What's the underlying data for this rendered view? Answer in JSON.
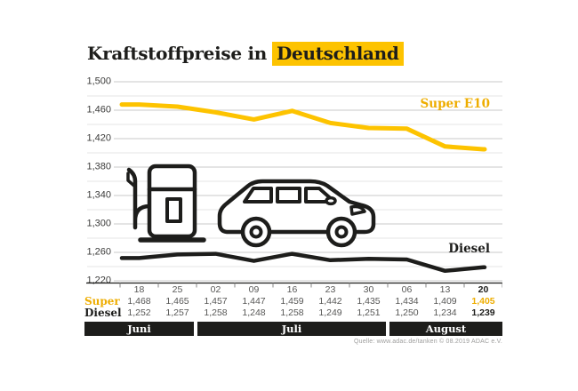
{
  "title": {
    "prefix": "Kraftstoffpreise in",
    "highlight": "Deutschland"
  },
  "source": "Quelle: www.adac.de/tanken    © 08.2019    ADAC e.V.",
  "colors": {
    "accent_yellow": "#fdc300",
    "yellow_text": "#eead00",
    "ink_black": "#1d1d1b",
    "value_gray": "#575756",
    "grid_major": "#c9c9c9",
    "grid_minor": "#e5e5e5",
    "tick_gray": "#878787",
    "source_gray": "#9d9d9c"
  },
  "icons": [
    "fuel-pump-icon",
    "car-icon"
  ],
  "chart_data": {
    "type": "line",
    "title": "Kraftstoffpreise in Deutschland",
    "x": [
      "18",
      "25",
      "02",
      "09",
      "16",
      "23",
      "30",
      "06",
      "13",
      "20"
    ],
    "months": [
      {
        "label": "Juni",
        "span": 2
      },
      {
        "label": "Juli",
        "span": 5
      },
      {
        "label": "August",
        "span": 3
      }
    ],
    "series": [
      {
        "name": "Super E10",
        "color": "#fdc300",
        "values": [
          1.468,
          1.465,
          1.457,
          1.447,
          1.459,
          1.442,
          1.435,
          1.434,
          1.409,
          1.405
        ]
      },
      {
        "name": "Diesel",
        "color": "#1d1d1b",
        "values": [
          1.252,
          1.257,
          1.258,
          1.248,
          1.258,
          1.249,
          1.251,
          1.25,
          1.234,
          1.239
        ]
      }
    ],
    "ylim": [
      1.22,
      1.5
    ],
    "ytick_step": 0.04,
    "grid_minor_step": 0.02,
    "yticks_labels": [
      "1,500",
      "1,460",
      "1,420",
      "1,380",
      "1,340",
      "1,300",
      "1,260",
      "1,220"
    ],
    "grid": true,
    "legend_position": "inline-right-of-lines"
  },
  "table": {
    "rows": [
      {
        "label": "Super",
        "values": [
          "1,468",
          "1,465",
          "1,457",
          "1,447",
          "1,459",
          "1,442",
          "1,435",
          "1,434",
          "1,409",
          "1,405"
        ]
      },
      {
        "label": "Diesel",
        "values": [
          "1,252",
          "1,257",
          "1,258",
          "1,248",
          "1,258",
          "1,249",
          "1,251",
          "1,250",
          "1,234",
          "1,239"
        ]
      }
    ]
  }
}
